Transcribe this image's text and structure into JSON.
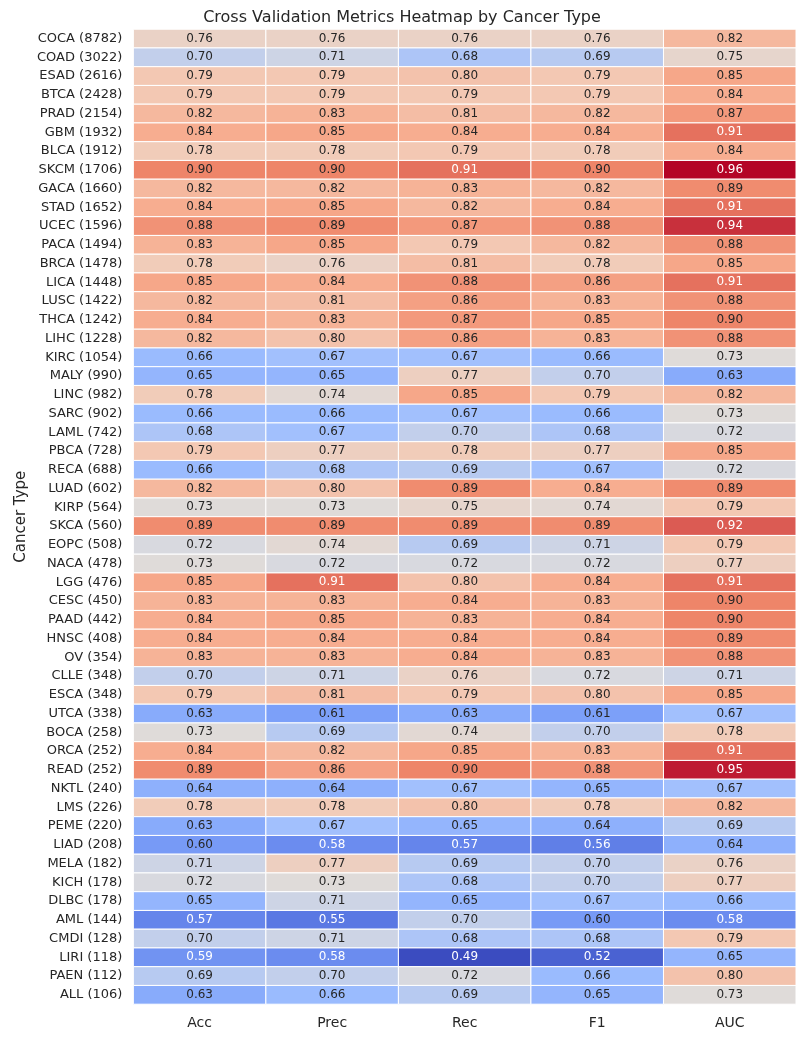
{
  "chart_data": {
    "type": "heatmap",
    "title": "Cross Validation Metrics Heatmap by Cancer Type",
    "ylabel": "Cancer Type",
    "categories": [
      "Acc",
      "Prec",
      "Rec",
      "F1",
      "AUC"
    ],
    "y_categories": [
      "COCA (8782)",
      "COAD (3022)",
      "ESAD (2616)",
      "BTCA (2428)",
      "PRAD (2154)",
      "GBM (1932)",
      "BLCA (1912)",
      "SKCM (1706)",
      "GACA (1660)",
      "STAD (1652)",
      "UCEC (1596)",
      "PACA (1494)",
      "BRCA (1478)",
      "LICA (1448)",
      "LUSC (1422)",
      "THCA (1242)",
      "LIHC (1228)",
      "KIRC (1054)",
      "MALY (990)",
      "LINC (982)",
      "SARC (902)",
      "LAML (742)",
      "PBCA (728)",
      "RECA (688)",
      "LUAD (602)",
      "KIRP (564)",
      "SKCA (560)",
      "EOPC (508)",
      "NACA (478)",
      "LGG (476)",
      "CESC (450)",
      "PAAD (442)",
      "HNSC (408)",
      "OV (354)",
      "CLLE (348)",
      "ESCA (348)",
      "UTCA (338)",
      "BOCA (258)",
      "ORCA (252)",
      "READ (252)",
      "NKTL (240)",
      "LMS (226)",
      "PEME (220)",
      "LIAD (208)",
      "MELA (182)",
      "KICH (178)",
      "DLBC (178)",
      "AML (144)",
      "CMDI (128)",
      "LIRI (118)",
      "PAEN (112)",
      "ALL (106)"
    ],
    "cells": [
      [
        0.76,
        0.76,
        0.76,
        0.76,
        0.82
      ],
      [
        0.7,
        0.71,
        0.68,
        0.69,
        0.75
      ],
      [
        0.79,
        0.79,
        0.8,
        0.79,
        0.85
      ],
      [
        0.79,
        0.79,
        0.79,
        0.79,
        0.84
      ],
      [
        0.82,
        0.83,
        0.81,
        0.82,
        0.87
      ],
      [
        0.84,
        0.85,
        0.84,
        0.84,
        0.91
      ],
      [
        0.78,
        0.78,
        0.79,
        0.78,
        0.84
      ],
      [
        0.9,
        0.9,
        0.91,
        0.9,
        0.96
      ],
      [
        0.82,
        0.82,
        0.83,
        0.82,
        0.89
      ],
      [
        0.84,
        0.85,
        0.82,
        0.84,
        0.91
      ],
      [
        0.88,
        0.89,
        0.87,
        0.88,
        0.94
      ],
      [
        0.83,
        0.85,
        0.79,
        0.82,
        0.88
      ],
      [
        0.78,
        0.76,
        0.81,
        0.78,
        0.85
      ],
      [
        0.85,
        0.84,
        0.88,
        0.86,
        0.91
      ],
      [
        0.82,
        0.81,
        0.86,
        0.83,
        0.88
      ],
      [
        0.84,
        0.83,
        0.87,
        0.85,
        0.9
      ],
      [
        0.82,
        0.8,
        0.86,
        0.83,
        0.88
      ],
      [
        0.66,
        0.67,
        0.67,
        0.66,
        0.73
      ],
      [
        0.65,
        0.65,
        0.77,
        0.7,
        0.63
      ],
      [
        0.78,
        0.74,
        0.85,
        0.79,
        0.82
      ],
      [
        0.66,
        0.66,
        0.67,
        0.66,
        0.73
      ],
      [
        0.68,
        0.67,
        0.7,
        0.68,
        0.72
      ],
      [
        0.79,
        0.77,
        0.78,
        0.77,
        0.85
      ],
      [
        0.66,
        0.68,
        0.69,
        0.67,
        0.72
      ],
      [
        0.82,
        0.8,
        0.89,
        0.84,
        0.89
      ],
      [
        0.73,
        0.73,
        0.75,
        0.74,
        0.79
      ],
      [
        0.89,
        0.89,
        0.89,
        0.89,
        0.92
      ],
      [
        0.72,
        0.74,
        0.69,
        0.71,
        0.79
      ],
      [
        0.73,
        0.72,
        0.72,
        0.72,
        0.77
      ],
      [
        0.85,
        0.91,
        0.8,
        0.84,
        0.91
      ],
      [
        0.83,
        0.83,
        0.84,
        0.83,
        0.9
      ],
      [
        0.84,
        0.85,
        0.83,
        0.84,
        0.9
      ],
      [
        0.84,
        0.84,
        0.84,
        0.84,
        0.89
      ],
      [
        0.83,
        0.83,
        0.84,
        0.83,
        0.88
      ],
      [
        0.7,
        0.71,
        0.76,
        0.72,
        0.71
      ],
      [
        0.79,
        0.81,
        0.79,
        0.8,
        0.85
      ],
      [
        0.63,
        0.61,
        0.63,
        0.61,
        0.67
      ],
      [
        0.73,
        0.69,
        0.74,
        0.7,
        0.78
      ],
      [
        0.84,
        0.82,
        0.85,
        0.83,
        0.91
      ],
      [
        0.89,
        0.86,
        0.9,
        0.88,
        0.95
      ],
      [
        0.64,
        0.64,
        0.67,
        0.65,
        0.67
      ],
      [
        0.78,
        0.78,
        0.8,
        0.78,
        0.82
      ],
      [
        0.63,
        0.67,
        0.65,
        0.64,
        0.69
      ],
      [
        0.6,
        0.58,
        0.57,
        0.56,
        0.64
      ],
      [
        0.71,
        0.77,
        0.69,
        0.7,
        0.76
      ],
      [
        0.72,
        0.73,
        0.68,
        0.7,
        0.77
      ],
      [
        0.65,
        0.71,
        0.65,
        0.67,
        0.66
      ],
      [
        0.57,
        0.55,
        0.7,
        0.6,
        0.58
      ],
      [
        0.7,
        0.71,
        0.68,
        0.68,
        0.79
      ],
      [
        0.59,
        0.58,
        0.49,
        0.52,
        0.65
      ],
      [
        0.69,
        0.7,
        0.72,
        0.66,
        0.8
      ],
      [
        0.63,
        0.66,
        0.69,
        0.65,
        0.73
      ]
    ],
    "cell_labels": [
      [
        "0.76",
        "0.76",
        "0.76",
        "0.76",
        "0.82"
      ],
      [
        "0.70",
        "0.71",
        "0.68",
        "0.69",
        "0.75"
      ],
      [
        "0.79",
        "0.79",
        "0.80",
        "0.79",
        "0.85"
      ],
      [
        "0.79",
        "0.79",
        "0.79",
        "0.79",
        "0.84"
      ],
      [
        "0.82",
        "0.83",
        "0.81",
        "0.82",
        "0.87"
      ],
      [
        "0.84",
        "0.85",
        "0.84",
        "0.84",
        "0.91"
      ],
      [
        "0.78",
        "0.78",
        "0.79",
        "0.78",
        "0.84"
      ],
      [
        "0.90",
        "0.90",
        "0.91",
        "0.90",
        "0.96"
      ],
      [
        "0.82",
        "0.82",
        "0.83",
        "0.82",
        "0.89"
      ],
      [
        "0.84",
        "0.85",
        "0.82",
        "0.84",
        "0.91"
      ],
      [
        "0.88",
        "0.89",
        "0.87",
        "0.88",
        "0.94"
      ],
      [
        "0.83",
        "0.85",
        "0.79",
        "0.82",
        "0.88"
      ],
      [
        "0.78",
        "0.76",
        "0.81",
        "0.78",
        "0.85"
      ],
      [
        "0.85",
        "0.84",
        "0.88",
        "0.86",
        "0.91"
      ],
      [
        "0.82",
        "0.81",
        "0.86",
        "0.83",
        "0.88"
      ],
      [
        "0.84",
        "0.83",
        "0.87",
        "0.85",
        "0.90"
      ],
      [
        "0.82",
        "0.80",
        "0.86",
        "0.83",
        "0.88"
      ],
      [
        "0.66",
        "0.67",
        "0.67",
        "0.66",
        "0.73"
      ],
      [
        "0.65",
        "0.65",
        "0.77",
        "0.70",
        "0.63"
      ],
      [
        "0.78",
        "0.74",
        "0.85",
        "0.79",
        "0.82"
      ],
      [
        "0.66",
        "0.66",
        "0.67",
        "0.66",
        "0.73"
      ],
      [
        "0.68",
        "0.67",
        "0.70",
        "0.68",
        "0.72"
      ],
      [
        "0.79",
        "0.77",
        "0.78",
        "0.77",
        "0.85"
      ],
      [
        "0.66",
        "0.68",
        "0.69",
        "0.67",
        "0.72"
      ],
      [
        "0.82",
        "0.80",
        "0.89",
        "0.84",
        "0.89"
      ],
      [
        "0.73",
        "0.73",
        "0.75",
        "0.74",
        "0.79"
      ],
      [
        "0.89",
        "0.89",
        "0.89",
        "0.89",
        "0.92"
      ],
      [
        "0.72",
        "0.74",
        "0.69",
        "0.71",
        "0.79"
      ],
      [
        "0.73",
        "0.72",
        "0.72",
        "0.72",
        "0.77"
      ],
      [
        "0.85",
        "0.91",
        "0.80",
        "0.84",
        "0.91"
      ],
      [
        "0.83",
        "0.83",
        "0.84",
        "0.83",
        "0.90"
      ],
      [
        "0.84",
        "0.85",
        "0.83",
        "0.84",
        "0.90"
      ],
      [
        "0.84",
        "0.84",
        "0.84",
        "0.84",
        "0.89"
      ],
      [
        "0.83",
        "0.83",
        "0.84",
        "0.83",
        "0.88"
      ],
      [
        "0.70",
        "0.71",
        "0.76",
        "0.72",
        "0.71"
      ],
      [
        "0.79",
        "0.81",
        "0.79",
        "0.80",
        "0.85"
      ],
      [
        "0.63",
        "0.61",
        "0.63",
        "0.61",
        "0.67"
      ],
      [
        "0.73",
        "0.69",
        "0.74",
        "0.70",
        "0.78"
      ],
      [
        "0.84",
        "0.82",
        "0.85",
        "0.83",
        "0.91"
      ],
      [
        "0.89",
        "0.86",
        "0.90",
        "0.88",
        "0.95"
      ],
      [
        "0.64",
        "0.64",
        "0.67",
        "0.65",
        "0.67"
      ],
      [
        "0.78",
        "0.78",
        "0.80",
        "0.78",
        "0.82"
      ],
      [
        "0.63",
        "0.67",
        "0.65",
        "0.64",
        "0.69"
      ],
      [
        "0.60",
        "0.58",
        "0.57",
        "0.56",
        "0.64"
      ],
      [
        "0.71",
        "0.77",
        "0.69",
        "0.70",
        "0.76"
      ],
      [
        "0.72",
        "0.73",
        "0.68",
        "0.70",
        "0.77"
      ],
      [
        "0.65",
        "0.71",
        "0.65",
        "0.67",
        "0.66"
      ],
      [
        "0.57",
        "0.55",
        "0.70",
        "0.60",
        "0.58"
      ],
      [
        "0.70",
        "0.71",
        "0.68",
        "0.68",
        "0.79"
      ],
      [
        "0.59",
        "0.58",
        "0.49",
        "0.52",
        "0.65"
      ],
      [
        "0.69",
        "0.70",
        "0.72",
        "0.66",
        "0.80"
      ],
      [
        "0.63",
        "0.66",
        "0.69",
        "0.65",
        "0.73"
      ]
    ]
  }
}
